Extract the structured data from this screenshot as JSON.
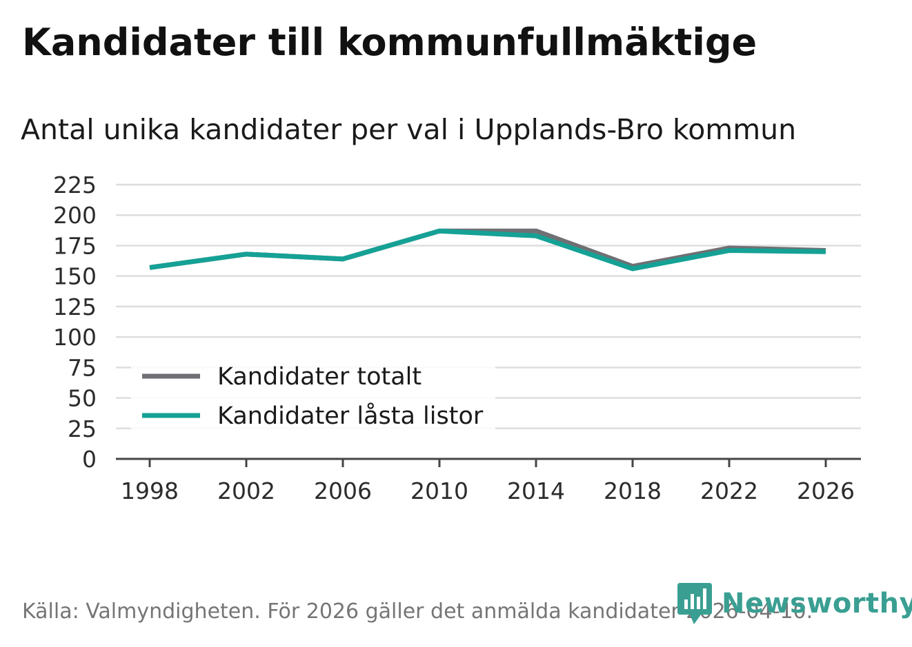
{
  "header": {
    "title": "Kandidater till kommunfullmäktige",
    "subtitle": "Antal unika kandidater per val i Upplands-Bro kommun"
  },
  "footer": {
    "source": "Källa: Valmyndigheten. För 2026 gäller det anmälda kandidater 2026-04-10.",
    "brand": "Newsworthy"
  },
  "colors": {
    "total": "#707074",
    "locked": "#15a195",
    "grid": "#dddddd",
    "axis": "#444444",
    "brand": "#3a9f92"
  },
  "chart_data": {
    "type": "line",
    "title": "Kandidater till kommunfullmäktige",
    "subtitle": "Antal unika kandidater per val i Upplands-Bro kommun",
    "xlabel": "",
    "ylabel": "",
    "x": [
      "1998",
      "2002",
      "2006",
      "2010",
      "2014",
      "2018",
      "2022",
      "2026"
    ],
    "yticks": [
      "0",
      "25",
      "50",
      "75",
      "100",
      "125",
      "150",
      "175",
      "200",
      "225"
    ],
    "ylim": [
      0,
      225
    ],
    "grid": true,
    "legend": "bottom-left",
    "series": [
      {
        "name": "Kandidater totalt",
        "color_key": "total",
        "values": [
          157,
          168,
          164,
          187,
          187,
          158,
          173,
          171
        ]
      },
      {
        "name": "Kandidater låsta listor",
        "color_key": "locked",
        "values": [
          157,
          168,
          164,
          187,
          183,
          156,
          171,
          170
        ]
      }
    ]
  }
}
